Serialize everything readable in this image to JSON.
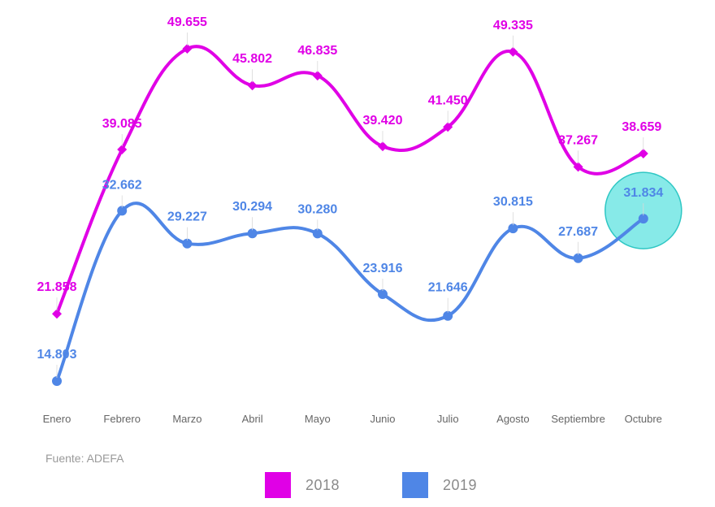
{
  "source": "Fuente: ADEFA",
  "chart_data": {
    "type": "line",
    "title": "",
    "xlabel": "",
    "ylabel": "",
    "categories": [
      "Enero",
      "Febrero",
      "Marzo",
      "Abril",
      "Mayo",
      "Junio",
      "Julio",
      "Agosto",
      "Septiembre",
      "Octubre"
    ],
    "ylim": [
      10000,
      52000
    ],
    "grid": false,
    "legend_position": "bottom",
    "series": [
      {
        "name": "2018",
        "color": "#e000e6",
        "marker": "diamond",
        "values": [
          21858,
          39085,
          49655,
          45802,
          46835,
          39420,
          41450,
          49335,
          37267,
          38659
        ],
        "labels": [
          "21.858",
          "39.085",
          "49.655",
          "45.802",
          "46.835",
          "39.420",
          "41.450",
          "49.335",
          "37.267",
          "38.659"
        ]
      },
      {
        "name": "2019",
        "color": "#4f86e6",
        "marker": "circle",
        "values": [
          14803,
          32662,
          29227,
          30294,
          30280,
          23916,
          21646,
          30815,
          27687,
          31834
        ],
        "labels": [
          "14.803",
          "32.662",
          "29.227",
          "30.294",
          "30.280",
          "23.916",
          "21.646",
          "30.815",
          "27.687",
          "31.834"
        ]
      }
    ],
    "highlight": {
      "series": "2019",
      "category": "Octubre",
      "color": "#5fe3e0"
    }
  }
}
